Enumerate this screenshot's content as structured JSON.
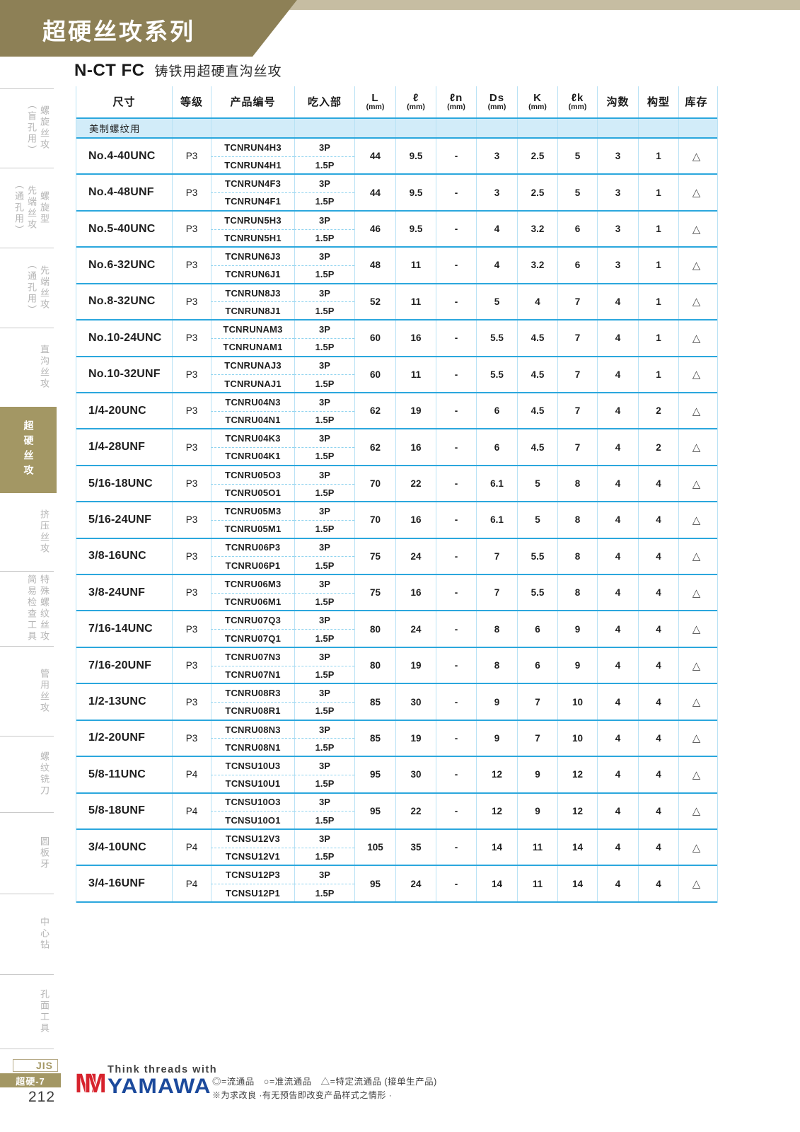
{
  "page": {
    "banner_title": "超硬丝攻系列",
    "model_code": "N-CT FC",
    "model_desc": "铸铁用超硬直沟丝攻"
  },
  "sidebar": {
    "items": [
      {
        "key": "spiral-tap-blind-hole",
        "columns": [
          "螺旋丝攻",
          "（盲孔用）"
        ],
        "active": false
      },
      {
        "key": "spiral-point-tap-through-hole",
        "columns": [
          "螺旋型",
          "先端丝攻",
          "（通孔用）"
        ],
        "active": false
      },
      {
        "key": "point-tap-through-hole",
        "columns": [
          "先端丝攻",
          "（通孔用）"
        ],
        "active": false
      },
      {
        "key": "straight-flute-tap",
        "columns": [
          "直沟丝攻"
        ],
        "active": false
      },
      {
        "key": "carbide-tap",
        "columns": [
          "超硬丝攻"
        ],
        "active": true
      },
      {
        "key": "forming-tap",
        "columns": [
          "挤压丝攻"
        ],
        "active": false
      },
      {
        "key": "special-thread-tap-check-tools",
        "columns": [
          "特殊螺纹丝攻",
          "简易检查工具"
        ],
        "active": false
      },
      {
        "key": "pipe-tap",
        "columns": [
          "管用丝攻"
        ],
        "active": false
      },
      {
        "key": "thread-milling-cutter",
        "columns": [
          "螺纹铣刀"
        ],
        "active": false
      },
      {
        "key": "round-die",
        "columns": [
          "圆板牙"
        ],
        "active": false
      },
      {
        "key": "center-drill",
        "columns": [
          "中心钻"
        ],
        "active": false
      },
      {
        "key": "hole-surface-tools",
        "columns": [
          "孔面工具"
        ],
        "active": false
      }
    ]
  },
  "table": {
    "headers": [
      {
        "label": "尺寸",
        "unit": ""
      },
      {
        "label": "等级",
        "unit": ""
      },
      {
        "label": "产品编号",
        "unit": ""
      },
      {
        "label": "吃入部",
        "unit": ""
      },
      {
        "label": "L",
        "unit": "(mm)"
      },
      {
        "label": "ℓ",
        "unit": "(mm)"
      },
      {
        "label": "ℓn",
        "unit": "(mm)"
      },
      {
        "label": "Ds",
        "unit": "(mm)"
      },
      {
        "label": "K",
        "unit": "(mm)"
      },
      {
        "label": "ℓk",
        "unit": "(mm)"
      },
      {
        "label": "沟数",
        "unit": ""
      },
      {
        "label": "构型",
        "unit": ""
      },
      {
        "label": "库存",
        "unit": ""
      }
    ],
    "section_label": "美制螺纹用",
    "rows": [
      {
        "size": "No.4-40UNC",
        "grade": "P3",
        "codes": [
          "TCNRUN4H3",
          "TCNRUN4H1"
        ],
        "chamfers": [
          "3P",
          "1.5P"
        ],
        "L": "44",
        "l": "9.5",
        "ln": "-",
        "Ds": "3",
        "K": "2.5",
        "lk": "5",
        "flutes": "3",
        "config": "1",
        "stock": "△"
      },
      {
        "size": "No.4-48UNF",
        "grade": "P3",
        "codes": [
          "TCNRUN4F3",
          "TCNRUN4F1"
        ],
        "chamfers": [
          "3P",
          "1.5P"
        ],
        "L": "44",
        "l": "9.5",
        "ln": "-",
        "Ds": "3",
        "K": "2.5",
        "lk": "5",
        "flutes": "3",
        "config": "1",
        "stock": "△"
      },
      {
        "size": "No.5-40UNC",
        "grade": "P3",
        "codes": [
          "TCNRUN5H3",
          "TCNRUN5H1"
        ],
        "chamfers": [
          "3P",
          "1.5P"
        ],
        "L": "46",
        "l": "9.5",
        "ln": "-",
        "Ds": "4",
        "K": "3.2",
        "lk": "6",
        "flutes": "3",
        "config": "1",
        "stock": "△"
      },
      {
        "size": "No.6-32UNC",
        "grade": "P3",
        "codes": [
          "TCNRUN6J3",
          "TCNRUN6J1"
        ],
        "chamfers": [
          "3P",
          "1.5P"
        ],
        "L": "48",
        "l": "11",
        "ln": "-",
        "Ds": "4",
        "K": "3.2",
        "lk": "6",
        "flutes": "3",
        "config": "1",
        "stock": "△"
      },
      {
        "size": "No.8-32UNC",
        "grade": "P3",
        "codes": [
          "TCNRUN8J3",
          "TCNRUN8J1"
        ],
        "chamfers": [
          "3P",
          "1.5P"
        ],
        "L": "52",
        "l": "11",
        "ln": "-",
        "Ds": "5",
        "K": "4",
        "lk": "7",
        "flutes": "4",
        "config": "1",
        "stock": "△"
      },
      {
        "size": "No.10-24UNC",
        "grade": "P3",
        "codes": [
          "TCNRUNAM3",
          "TCNRUNAM1"
        ],
        "chamfers": [
          "3P",
          "1.5P"
        ],
        "L": "60",
        "l": "16",
        "ln": "-",
        "Ds": "5.5",
        "K": "4.5",
        "lk": "7",
        "flutes": "4",
        "config": "1",
        "stock": "△"
      },
      {
        "size": "No.10-32UNF",
        "grade": "P3",
        "codes": [
          "TCNRUNAJ3",
          "TCNRUNAJ1"
        ],
        "chamfers": [
          "3P",
          "1.5P"
        ],
        "L": "60",
        "l": "11",
        "ln": "-",
        "Ds": "5.5",
        "K": "4.5",
        "lk": "7",
        "flutes": "4",
        "config": "1",
        "stock": "△"
      },
      {
        "size": "1/4-20UNC",
        "grade": "P3",
        "codes": [
          "TCNRU04N3",
          "TCNRU04N1"
        ],
        "chamfers": [
          "3P",
          "1.5P"
        ],
        "L": "62",
        "l": "19",
        "ln": "-",
        "Ds": "6",
        "K": "4.5",
        "lk": "7",
        "flutes": "4",
        "config": "2",
        "stock": "△"
      },
      {
        "size": "1/4-28UNF",
        "grade": "P3",
        "codes": [
          "TCNRU04K3",
          "TCNRU04K1"
        ],
        "chamfers": [
          "3P",
          "1.5P"
        ],
        "L": "62",
        "l": "16",
        "ln": "-",
        "Ds": "6",
        "K": "4.5",
        "lk": "7",
        "flutes": "4",
        "config": "2",
        "stock": "△"
      },
      {
        "size": "5/16-18UNC",
        "grade": "P3",
        "codes": [
          "TCNRU05O3",
          "TCNRU05O1"
        ],
        "chamfers": [
          "3P",
          "1.5P"
        ],
        "L": "70",
        "l": "22",
        "ln": "-",
        "Ds": "6.1",
        "K": "5",
        "lk": "8",
        "flutes": "4",
        "config": "4",
        "stock": "△"
      },
      {
        "size": "5/16-24UNF",
        "grade": "P3",
        "codes": [
          "TCNRU05M3",
          "TCNRU05M1"
        ],
        "chamfers": [
          "3P",
          "1.5P"
        ],
        "L": "70",
        "l": "16",
        "ln": "-",
        "Ds": "6.1",
        "K": "5",
        "lk": "8",
        "flutes": "4",
        "config": "4",
        "stock": "△"
      },
      {
        "size": "3/8-16UNC",
        "grade": "P3",
        "codes": [
          "TCNRU06P3",
          "TCNRU06P1"
        ],
        "chamfers": [
          "3P",
          "1.5P"
        ],
        "L": "75",
        "l": "24",
        "ln": "-",
        "Ds": "7",
        "K": "5.5",
        "lk": "8",
        "flutes": "4",
        "config": "4",
        "stock": "△"
      },
      {
        "size": "3/8-24UNF",
        "grade": "P3",
        "codes": [
          "TCNRU06M3",
          "TCNRU06M1"
        ],
        "chamfers": [
          "3P",
          "1.5P"
        ],
        "L": "75",
        "l": "16",
        "ln": "-",
        "Ds": "7",
        "K": "5.5",
        "lk": "8",
        "flutes": "4",
        "config": "4",
        "stock": "△"
      },
      {
        "size": "7/16-14UNC",
        "grade": "P3",
        "codes": [
          "TCNRU07Q3",
          "TCNRU07Q1"
        ],
        "chamfers": [
          "3P",
          "1.5P"
        ],
        "L": "80",
        "l": "24",
        "ln": "-",
        "Ds": "8",
        "K": "6",
        "lk": "9",
        "flutes": "4",
        "config": "4",
        "stock": "△"
      },
      {
        "size": "7/16-20UNF",
        "grade": "P3",
        "codes": [
          "TCNRU07N3",
          "TCNRU07N1"
        ],
        "chamfers": [
          "3P",
          "1.5P"
        ],
        "L": "80",
        "l": "19",
        "ln": "-",
        "Ds": "8",
        "K": "6",
        "lk": "9",
        "flutes": "4",
        "config": "4",
        "stock": "△"
      },
      {
        "size": "1/2-13UNC",
        "grade": "P3",
        "codes": [
          "TCNRU08R3",
          "TCNRU08R1"
        ],
        "chamfers": [
          "3P",
          "1.5P"
        ],
        "L": "85",
        "l": "30",
        "ln": "-",
        "Ds": "9",
        "K": "7",
        "lk": "10",
        "flutes": "4",
        "config": "4",
        "stock": "△"
      },
      {
        "size": "1/2-20UNF",
        "grade": "P3",
        "codes": [
          "TCNRU08N3",
          "TCNRU08N1"
        ],
        "chamfers": [
          "3P",
          "1.5P"
        ],
        "L": "85",
        "l": "19",
        "ln": "-",
        "Ds": "9",
        "K": "7",
        "lk": "10",
        "flutes": "4",
        "config": "4",
        "stock": "△"
      },
      {
        "size": "5/8-11UNC",
        "grade": "P4",
        "codes": [
          "TCNSU10U3",
          "TCNSU10U1"
        ],
        "chamfers": [
          "3P",
          "1.5P"
        ],
        "L": "95",
        "l": "30",
        "ln": "-",
        "Ds": "12",
        "K": "9",
        "lk": "12",
        "flutes": "4",
        "config": "4",
        "stock": "△"
      },
      {
        "size": "5/8-18UNF",
        "grade": "P4",
        "codes": [
          "TCNSU10O3",
          "TCNSU10O1"
        ],
        "chamfers": [
          "3P",
          "1.5P"
        ],
        "L": "95",
        "l": "22",
        "ln": "-",
        "Ds": "12",
        "K": "9",
        "lk": "12",
        "flutes": "4",
        "config": "4",
        "stock": "△"
      },
      {
        "size": "3/4-10UNC",
        "grade": "P4",
        "codes": [
          "TCNSU12V3",
          "TCNSU12V1"
        ],
        "chamfers": [
          "3P",
          "1.5P"
        ],
        "L": "105",
        "l": "35",
        "ln": "-",
        "Ds": "14",
        "K": "11",
        "lk": "14",
        "flutes": "4",
        "config": "4",
        "stock": "△"
      },
      {
        "size": "3/4-16UNF",
        "grade": "P4",
        "codes": [
          "TCNSU12P3",
          "TCNSU12P1"
        ],
        "chamfers": [
          "3P",
          "1.5P"
        ],
        "L": "95",
        "l": "24",
        "ln": "-",
        "Ds": "14",
        "K": "11",
        "lk": "14",
        "flutes": "4",
        "config": "4",
        "stock": "△"
      }
    ]
  },
  "footer": {
    "jis_label": "JIS",
    "series_label": "超硬-7",
    "page_number": "212",
    "logo_tagline": "Think threads with",
    "logo_name": "YAMAWA",
    "legend": "◎=流通品　○=准流通品　△=特定流通品 (接单生产品)",
    "note": "※为求改良 ·有无预告即改变产品样式之情形 ·"
  }
}
